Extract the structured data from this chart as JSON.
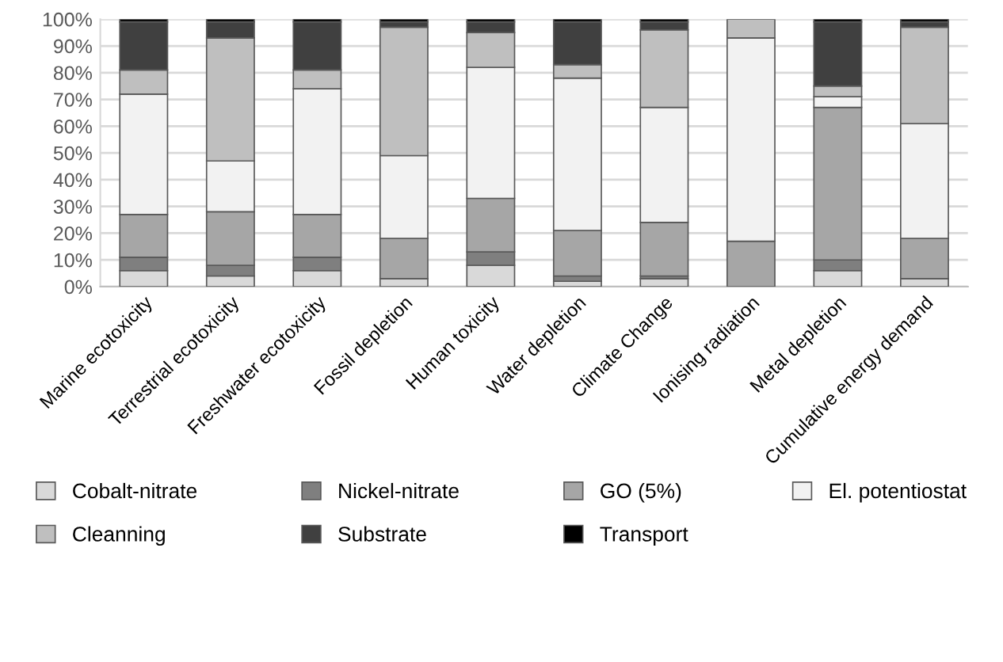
{
  "chart_data": {
    "type": "bar",
    "stacked": true,
    "categories": [
      "Marine ecotoxicity",
      "Terrestrial ecotoxicity",
      "Freshwater ecotoxicity",
      "Fossil depletion",
      "Human toxicity",
      "Water depletion",
      "Climate Change",
      "Ionising radiation",
      "Metal depletion",
      "Cumulative energy demand"
    ],
    "series": [
      {
        "name": "Cobalt-nitrate",
        "color": "#d9d9d9",
        "values": [
          6,
          4,
          6,
          3,
          8,
          2,
          3,
          0,
          6,
          3
        ]
      },
      {
        "name": "Nickel-nitrate",
        "color": "#7f7f7f",
        "values": [
          5,
          4,
          5,
          0,
          5,
          2,
          1,
          0,
          4,
          0
        ]
      },
      {
        "name": "GO (5%)",
        "color": "#a6a6a6",
        "values": [
          16,
          20,
          16,
          15,
          20,
          17,
          20,
          17,
          57,
          15
        ]
      },
      {
        "name": "El. potentiostat",
        "color": "#f2f2f2",
        "values": [
          45,
          19,
          47,
          31,
          49,
          57,
          43,
          76,
          4,
          43
        ]
      },
      {
        "name": "Cleanning",
        "color": "#bfbfbf",
        "values": [
          9,
          46,
          7,
          48,
          13,
          5,
          29,
          7,
          4,
          36
        ]
      },
      {
        "name": "Substrate",
        "color": "#404040",
        "values": [
          18,
          6,
          18,
          2,
          4,
          16,
          3,
          0,
          24,
          2
        ]
      },
      {
        "name": "Transport",
        "color": "#000000",
        "values": [
          1,
          1,
          1,
          1,
          1,
          1,
          1,
          0,
          1,
          1
        ]
      }
    ],
    "ylim": [
      0,
      100
    ],
    "yticks": [
      {
        "value": 0,
        "label": "0%"
      },
      {
        "value": 10,
        "label": "10%"
      },
      {
        "value": 20,
        "label": "20%"
      },
      {
        "value": 30,
        "label": "30%"
      },
      {
        "value": 40,
        "label": "40%"
      },
      {
        "value": 50,
        "label": "50%"
      },
      {
        "value": 60,
        "label": "60%"
      },
      {
        "value": 70,
        "label": "70%"
      },
      {
        "value": 80,
        "label": "80%"
      },
      {
        "value": 90,
        "label": "90%"
      },
      {
        "value": 100,
        "label": "100%"
      }
    ],
    "grid": "y",
    "legend": "bottom"
  }
}
